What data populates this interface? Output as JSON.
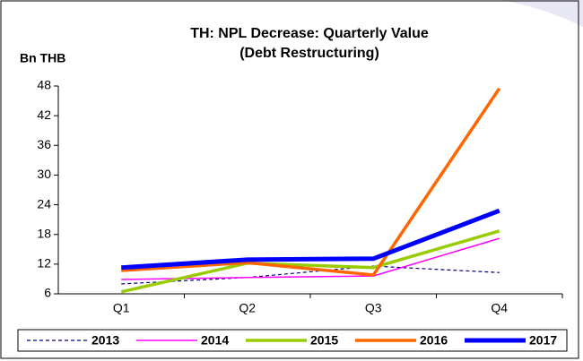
{
  "chart_data": {
    "type": "line",
    "title": "TH: NPL Decrease: Quarterly Value",
    "subtitle": "(Debt Restructuring)",
    "y_label": "Bn THB",
    "categories": [
      "Q1",
      "Q2",
      "Q3",
      "Q4"
    ],
    "series": [
      {
        "name": "2013",
        "color": "#000080",
        "dashed": true,
        "values": [
          8.0,
          9.3,
          11.6,
          10.3
        ]
      },
      {
        "name": "2014",
        "color": "#ff00ff",
        "values": [
          8.9,
          9.3,
          9.6,
          17.2
        ]
      },
      {
        "name": "2015",
        "color": "#99cc00",
        "values": [
          6.4,
          12.2,
          11.3,
          18.7
        ]
      },
      {
        "name": "2016",
        "color": "#ff6600",
        "values": [
          10.7,
          12.3,
          9.8,
          47.5
        ]
      },
      {
        "name": "2017",
        "color": "#0000ff",
        "values": [
          11.3,
          12.9,
          13.1,
          22.8
        ]
      }
    ],
    "ylim": [
      6,
      48
    ],
    "yticks": [
      6,
      12,
      18,
      24,
      30,
      36,
      42,
      48
    ],
    "grid": false,
    "legend": "bottom"
  }
}
